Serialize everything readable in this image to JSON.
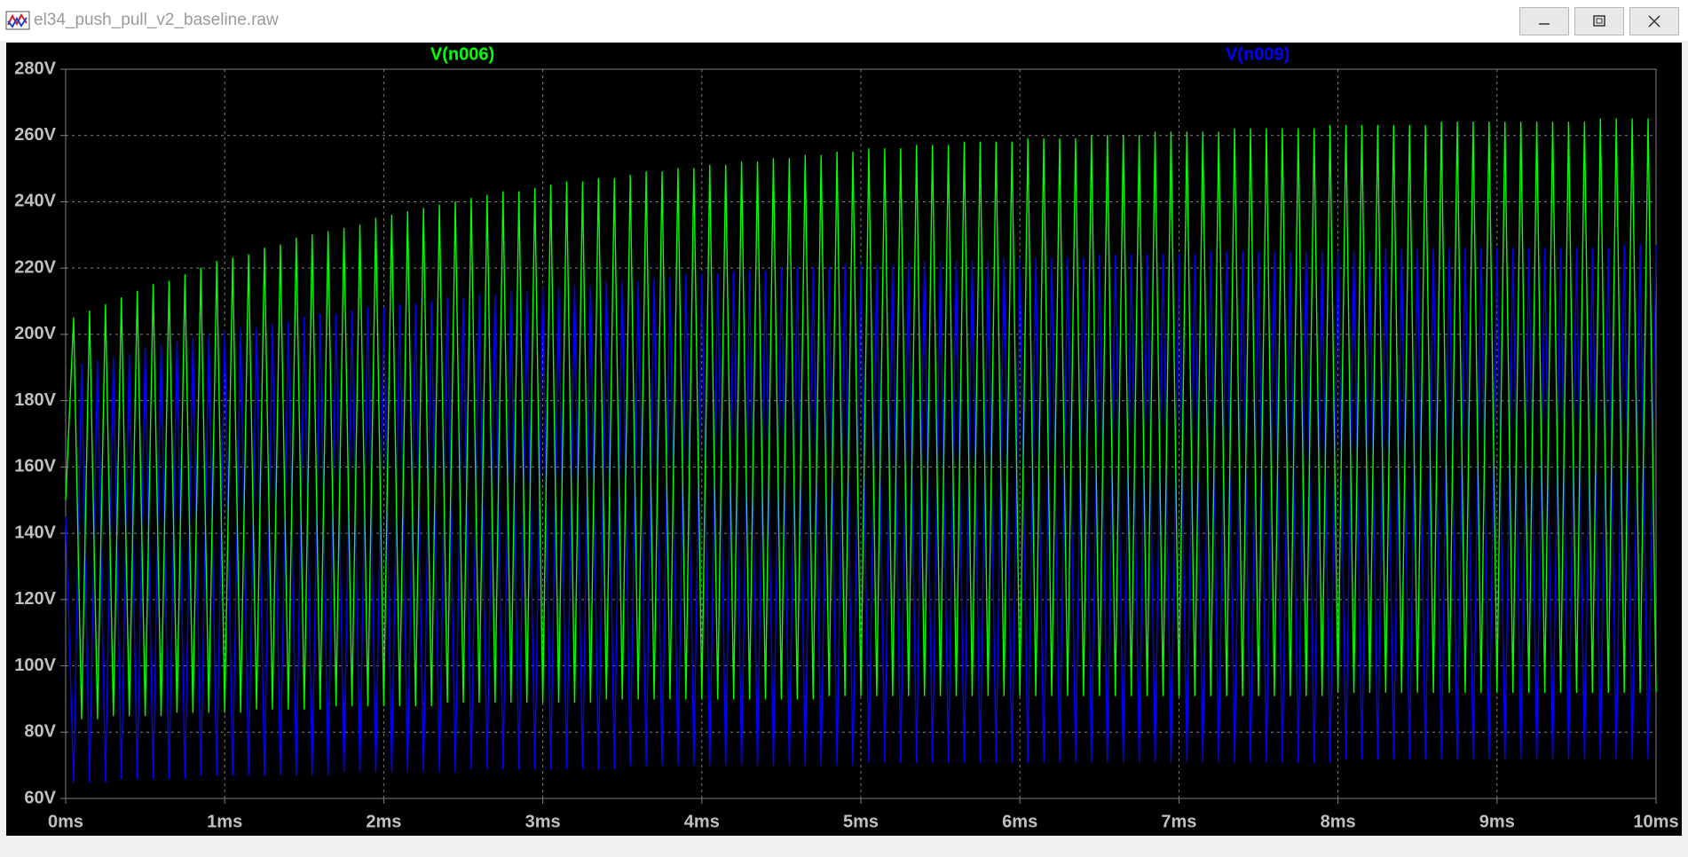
{
  "window": {
    "title": "el34_push_pull_v2_baseline.raw"
  },
  "chart_data": {
    "type": "line",
    "x": [
      0,
      0.05,
      0.1,
      0.15,
      0.2,
      0.25,
      0.3,
      0.35,
      0.4,
      0.45,
      0.5,
      0.55,
      0.6,
      0.65,
      0.7,
      0.75,
      0.8,
      0.85,
      0.9,
      0.95,
      1,
      1.05,
      1.1,
      1.15,
      1.2,
      1.25,
      1.3,
      1.35,
      1.4,
      1.45,
      1.5,
      1.55,
      1.6,
      1.65,
      1.7,
      1.75,
      1.8,
      1.85,
      1.9,
      1.95,
      2,
      2.05,
      2.1,
      2.15,
      2.2,
      2.25,
      2.3,
      2.35,
      2.4,
      2.45,
      2.5,
      2.55,
      2.6,
      2.65,
      2.7,
      2.75,
      2.8,
      2.85,
      2.9,
      2.95,
      3,
      3.05,
      3.1,
      3.15,
      3.2,
      3.25,
      3.3,
      3.35,
      3.4,
      3.45,
      3.5,
      3.55,
      3.6,
      3.65,
      3.7,
      3.75,
      3.8,
      3.85,
      3.9,
      3.95,
      4,
      4.05,
      4.1,
      4.15,
      4.2,
      4.25,
      4.3,
      4.35,
      4.4,
      4.45,
      4.5,
      4.55,
      4.6,
      4.65,
      4.7,
      4.75,
      4.8,
      4.85,
      4.9,
      4.95,
      5,
      5.05,
      5.1,
      5.15,
      5.2,
      5.25,
      5.3,
      5.35,
      5.4,
      5.45,
      5.5,
      5.55,
      5.6,
      5.65,
      5.7,
      5.75,
      5.8,
      5.85,
      5.9,
      5.95,
      6,
      6.05,
      6.1,
      6.15,
      6.2,
      6.25,
      6.3,
      6.35,
      6.4,
      6.45,
      6.5,
      6.55,
      6.6,
      6.65,
      6.7,
      6.75,
      6.8,
      6.85,
      6.9,
      6.95,
      7,
      7.05,
      7.1,
      7.15,
      7.2,
      7.25,
      7.3,
      7.35,
      7.4,
      7.45,
      7.5,
      7.55,
      7.6,
      7.65,
      7.7,
      7.75,
      7.8,
      7.85,
      7.9,
      7.95,
      8,
      8.05,
      8.1,
      8.15,
      8.2,
      8.25,
      8.3,
      8.35,
      8.4,
      8.45,
      8.5,
      8.55,
      8.6,
      8.65,
      8.7,
      8.75,
      8.8,
      8.85,
      8.9,
      8.95,
      9,
      9.05,
      9.1,
      9.15,
      9.2,
      9.25,
      9.3,
      9.35,
      9.4,
      9.45,
      9.5,
      9.55,
      9.6,
      9.65,
      9.7,
      9.75,
      9.8,
      9.85,
      9.9,
      9.95,
      10
    ],
    "series": [
      {
        "name": "V(n006)",
        "color": "#00ff00",
        "values": [
          150,
          205,
          84,
          207,
          84,
          209,
          85,
          211,
          85,
          213,
          85,
          215,
          85,
          216,
          86,
          218,
          86,
          220,
          86,
          222,
          86,
          223,
          86,
          224,
          87,
          226,
          87,
          227,
          87,
          229,
          87,
          230,
          87,
          231,
          88,
          232,
          88,
          233,
          88,
          235,
          88,
          236,
          88,
          237,
          88,
          238,
          88,
          239,
          89,
          240,
          89,
          241,
          89,
          242,
          89,
          243,
          89,
          243,
          89,
          244,
          89,
          245,
          89,
          246,
          89,
          246,
          89,
          247,
          90,
          247,
          90,
          248,
          90,
          249,
          90,
          249,
          90,
          250,
          90,
          250,
          90,
          251,
          90,
          251,
          90,
          252,
          90,
          252,
          90,
          253,
          90,
          253,
          90,
          254,
          90,
          254,
          91,
          255,
          91,
          255,
          91,
          256,
          91,
          256,
          91,
          256,
          91,
          257,
          91,
          257,
          91,
          257,
          91,
          258,
          91,
          258,
          91,
          258,
          91,
          258,
          91,
          259,
          91,
          259,
          91,
          259,
          91,
          259,
          91,
          260,
          91,
          260,
          91,
          260,
          91,
          260,
          91,
          261,
          91,
          261,
          91,
          261,
          91,
          261,
          91,
          261,
          91,
          262,
          91,
          262,
          91,
          262,
          91,
          262,
          91,
          262,
          91,
          262,
          91,
          263,
          92,
          263,
          92,
          263,
          92,
          263,
          92,
          263,
          92,
          263,
          92,
          263,
          92,
          264,
          92,
          264,
          92,
          264,
          92,
          264,
          92,
          264,
          92,
          264,
          92,
          264,
          92,
          264,
          92,
          264,
          92,
          264,
          92,
          265,
          92,
          265,
          92,
          265,
          92,
          265,
          92
        ]
      },
      {
        "name": "V(n009)",
        "color": "#0000ff",
        "values": [
          145,
          65,
          191,
          65,
          192,
          65,
          193,
          66,
          194,
          66,
          196,
          66,
          197,
          66,
          198,
          66,
          199,
          67,
          200,
          67,
          201,
          67,
          202,
          67,
          202,
          67,
          203,
          67,
          204,
          67,
          205,
          67,
          206,
          67,
          206,
          68,
          207,
          68,
          208,
          68,
          208,
          68,
          209,
          68,
          209,
          68,
          210,
          68,
          211,
          68,
          211,
          69,
          212,
          69,
          212,
          69,
          213,
          69,
          213,
          69,
          214,
          69,
          214,
          69,
          215,
          69,
          215,
          69,
          216,
          69,
          216,
          70,
          216,
          70,
          217,
          70,
          217,
          70,
          218,
          70,
          218,
          70,
          218,
          70,
          219,
          70,
          219,
          70,
          219,
          70,
          220,
          70,
          220,
          70,
          220,
          70,
          220,
          70,
          221,
          70,
          221,
          71,
          221,
          71,
          221,
          71,
          222,
          71,
          222,
          71,
          222,
          71,
          222,
          71,
          222,
          71,
          222,
          71,
          223,
          71,
          223,
          71,
          223,
          71,
          223,
          71,
          223,
          71,
          223,
          71,
          224,
          71,
          224,
          71,
          224,
          71,
          224,
          71,
          224,
          71,
          224,
          71,
          224,
          71,
          225,
          71,
          225,
          71,
          225,
          71,
          225,
          71,
          225,
          71,
          225,
          71,
          225,
          71,
          225,
          71,
          225,
          72,
          225,
          72,
          225,
          72,
          226,
          72,
          226,
          72,
          226,
          72,
          226,
          72,
          226,
          72,
          226,
          72,
          226,
          72,
          226,
          72,
          226,
          72,
          226,
          72,
          226,
          72,
          226,
          72,
          226,
          72,
          226,
          72,
          226,
          72,
          227,
          72,
          227,
          72,
          227
        ]
      }
    ],
    "xlim": [
      0,
      10
    ],
    "xticks": [
      {
        "value": 0,
        "label": "0ms"
      },
      {
        "value": 1,
        "label": "1ms"
      },
      {
        "value": 2,
        "label": "2ms"
      },
      {
        "value": 3,
        "label": "3ms"
      },
      {
        "value": 4,
        "label": "4ms"
      },
      {
        "value": 5,
        "label": "5ms"
      },
      {
        "value": 6,
        "label": "6ms"
      },
      {
        "value": 7,
        "label": "7ms"
      },
      {
        "value": 8,
        "label": "8ms"
      },
      {
        "value": 9,
        "label": "9ms"
      },
      {
        "value": 10,
        "label": "10ms"
      }
    ],
    "ylim": [
      60,
      280
    ],
    "yticks": [
      {
        "value": 60,
        "label": "60V"
      },
      {
        "value": 80,
        "label": "80V"
      },
      {
        "value": 100,
        "label": "100V"
      },
      {
        "value": 120,
        "label": "120V"
      },
      {
        "value": 140,
        "label": "140V"
      },
      {
        "value": 160,
        "label": "160V"
      },
      {
        "value": 180,
        "label": "180V"
      },
      {
        "value": 200,
        "label": "200V"
      },
      {
        "value": 220,
        "label": "220V"
      },
      {
        "value": 240,
        "label": "240V"
      },
      {
        "value": 260,
        "label": "260V"
      },
      {
        "value": 280,
        "label": "280V"
      }
    ],
    "grid": true
  }
}
